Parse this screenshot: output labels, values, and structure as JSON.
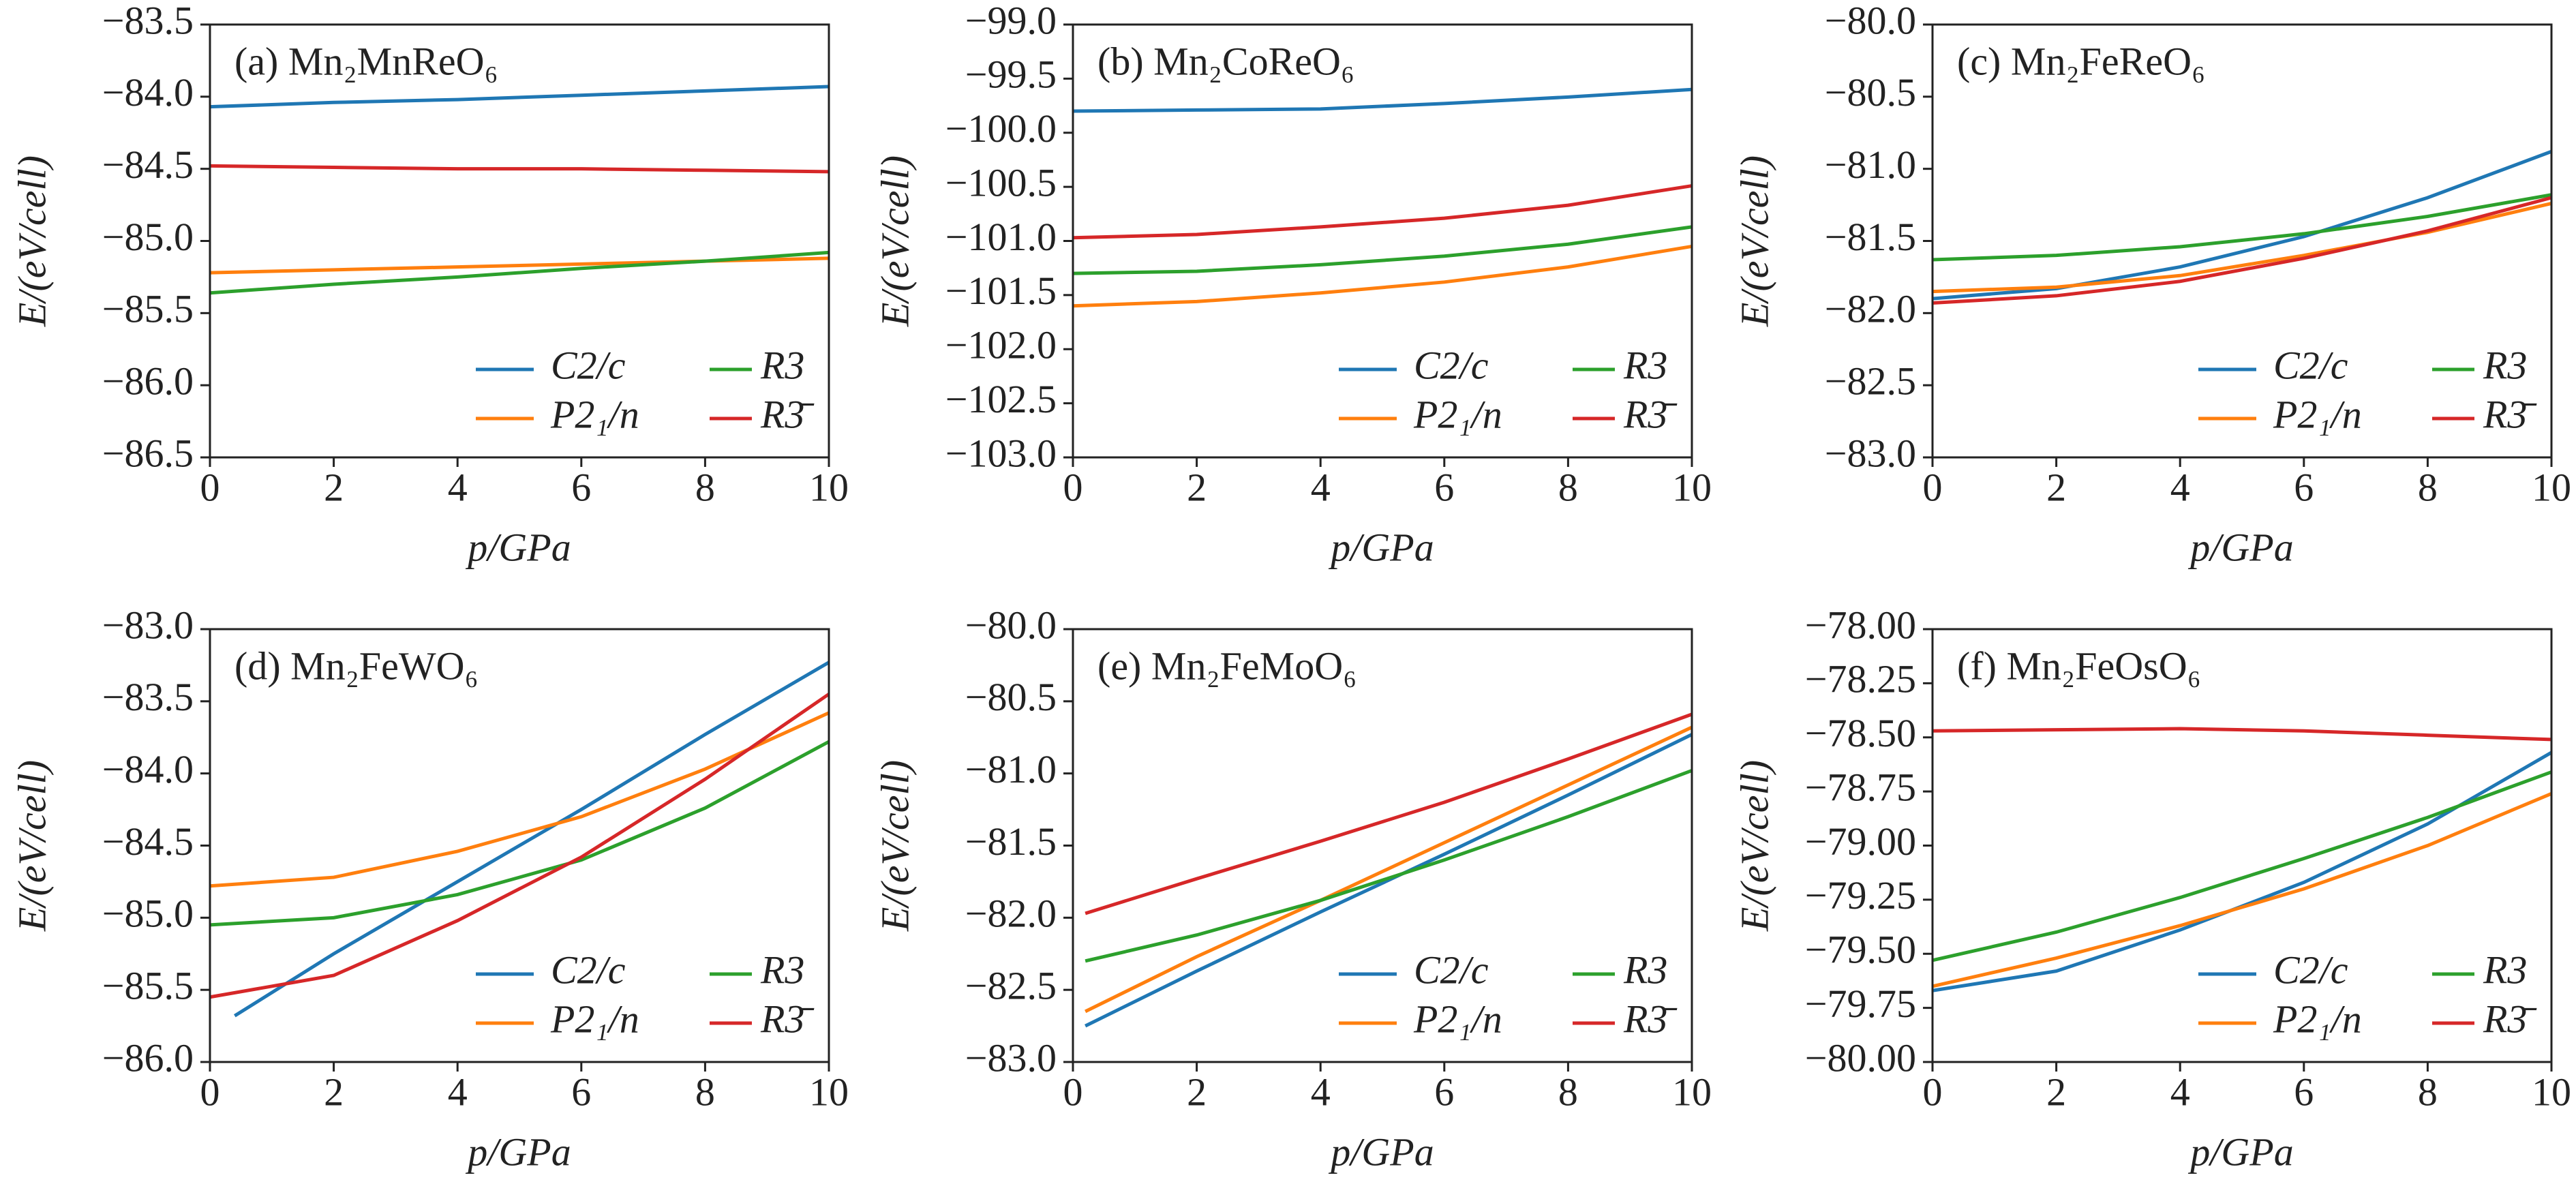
{
  "chart_data": [
    {
      "type": "line",
      "title": "(a) Mn₂MnReO₆",
      "xlabel": "p/GPa",
      "ylabel": "E/(eV/cell)",
      "x": [
        0,
        2,
        4,
        6,
        8,
        10
      ],
      "xlim": [
        0,
        10
      ],
      "xticks": [
        0,
        2,
        4,
        6,
        8,
        10
      ],
      "ylim": [
        -86.5,
        -83.5
      ],
      "yticks": [
        {
          "value": -86.5,
          "label": "−86.5"
        },
        {
          "value": -86.0,
          "label": "−86.0"
        },
        {
          "value": -85.5,
          "label": "−85.5"
        },
        {
          "value": -85.0,
          "label": "−85.0"
        },
        {
          "value": -84.5,
          "label": "−84.5"
        },
        {
          "value": -84.0,
          "label": "−84.0"
        },
        {
          "value": -83.5,
          "label": "−83.5"
        }
      ],
      "series": [
        {
          "name": "C2/c",
          "color": "#1f77b4",
          "values": [
            -84.07,
            -84.04,
            -84.02,
            -83.99,
            -83.96,
            -83.93
          ]
        },
        {
          "name": "P2₁/n",
          "color": "#ff7f0e",
          "values": [
            -85.22,
            -85.2,
            -85.18,
            -85.16,
            -85.14,
            -85.12
          ]
        },
        {
          "name": "R3",
          "color": "#2ca02c",
          "values": [
            -85.36,
            -85.3,
            -85.25,
            -85.19,
            -85.14,
            -85.08
          ]
        },
        {
          "name": "R3̄",
          "color": "#d62728",
          "values": [
            -84.48,
            -84.49,
            -84.5,
            -84.5,
            -84.51,
            -84.52
          ]
        }
      ]
    },
    {
      "type": "line",
      "title": "(b) Mn₂CoReO₆",
      "xlabel": "p/GPa",
      "ylabel": "E/(eV/cell)",
      "x": [
        0,
        2,
        4,
        6,
        8,
        10
      ],
      "xlim": [
        0,
        10
      ],
      "xticks": [
        0,
        2,
        4,
        6,
        8,
        10
      ],
      "ylim": [
        -103.0,
        -99.0
      ],
      "yticks": [
        {
          "value": -103.0,
          "label": "−103.0"
        },
        {
          "value": -102.5,
          "label": "−102.5"
        },
        {
          "value": -102.0,
          "label": "−102.0"
        },
        {
          "value": -101.5,
          "label": "−101.5"
        },
        {
          "value": -101.0,
          "label": "−101.0"
        },
        {
          "value": -100.5,
          "label": "−100.5"
        },
        {
          "value": -100.0,
          "label": "−100.0"
        },
        {
          "value": -99.5,
          "label": "−99.5"
        },
        {
          "value": -99.0,
          "label": "−99.0"
        }
      ],
      "series": [
        {
          "name": "C2/c",
          "color": "#1f77b4",
          "values": [
            -99.8,
            -99.79,
            -99.78,
            -99.73,
            -99.67,
            -99.6
          ]
        },
        {
          "name": "P2₁/n",
          "color": "#ff7f0e",
          "values": [
            -101.6,
            -101.56,
            -101.48,
            -101.38,
            -101.24,
            -101.05
          ]
        },
        {
          "name": "R3",
          "color": "#2ca02c",
          "values": [
            -101.3,
            -101.28,
            -101.22,
            -101.14,
            -101.03,
            -100.87
          ]
        },
        {
          "name": "R3̄",
          "color": "#d62728",
          "values": [
            -100.97,
            -100.94,
            -100.87,
            -100.79,
            -100.67,
            -100.49
          ]
        }
      ]
    },
    {
      "type": "line",
      "title": "(c) Mn₂FeReO₆",
      "xlabel": "p/GPa",
      "ylabel": "E/(eV/cell)",
      "x": [
        0,
        2,
        4,
        6,
        8,
        10
      ],
      "xlim": [
        0,
        10
      ],
      "xticks": [
        0,
        2,
        4,
        6,
        8,
        10
      ],
      "ylim": [
        -83.0,
        -80.0
      ],
      "yticks": [
        {
          "value": -83.0,
          "label": "−83.0"
        },
        {
          "value": -82.5,
          "label": "−82.5"
        },
        {
          "value": -82.0,
          "label": "−82.0"
        },
        {
          "value": -81.5,
          "label": "−81.5"
        },
        {
          "value": -81.0,
          "label": "−81.0"
        },
        {
          "value": -80.5,
          "label": "−80.5"
        },
        {
          "value": -80.0,
          "label": "−80.0"
        }
      ],
      "series": [
        {
          "name": "C2/c",
          "color": "#1f77b4",
          "values": [
            -81.9,
            -81.83,
            -81.68,
            -81.47,
            -81.2,
            -80.88
          ]
        },
        {
          "name": "P2₁/n",
          "color": "#ff7f0e",
          "values": [
            -81.85,
            -81.82,
            -81.74,
            -81.6,
            -81.44,
            -81.24
          ]
        },
        {
          "name": "R3",
          "color": "#2ca02c",
          "values": [
            -81.63,
            -81.6,
            -81.54,
            -81.45,
            -81.33,
            -81.18
          ]
        },
        {
          "name": "R3̄",
          "color": "#d62728",
          "values": [
            -81.93,
            -81.88,
            -81.78,
            -81.62,
            -81.43,
            -81.2
          ]
        }
      ]
    },
    {
      "type": "line",
      "title": "(d) Mn₂FeWO₆",
      "xlabel": "p/GPa",
      "ylabel": "E/(eV/cell)",
      "x": [
        0,
        2,
        4,
        6,
        8,
        10
      ],
      "xlim": [
        0,
        10
      ],
      "xticks": [
        0,
        2,
        4,
        6,
        8,
        10
      ],
      "ylim": [
        -86.0,
        -83.0
      ],
      "yticks": [
        {
          "value": -86.0,
          "label": "−86.0"
        },
        {
          "value": -85.5,
          "label": "−85.5"
        },
        {
          "value": -85.0,
          "label": "−85.0"
        },
        {
          "value": -84.5,
          "label": "−84.5"
        },
        {
          "value": -84.0,
          "label": "−84.0"
        },
        {
          "value": -83.5,
          "label": "−83.5"
        },
        {
          "value": -83.0,
          "label": "−83.0"
        }
      ],
      "series": [
        {
          "name": "C2/c",
          "color": "#1f77b4",
          "x": [
            0.4,
            2,
            4,
            6,
            8,
            10
          ],
          "values": [
            -85.68,
            -85.25,
            -84.75,
            -84.25,
            -83.73,
            -83.23
          ]
        },
        {
          "name": "P2₁/n",
          "color": "#ff7f0e",
          "values": [
            -84.78,
            -84.72,
            -84.54,
            -84.3,
            -83.97,
            -83.58
          ]
        },
        {
          "name": "R3",
          "color": "#2ca02c",
          "values": [
            -85.05,
            -85.0,
            -84.84,
            -84.6,
            -84.24,
            -83.78
          ]
        },
        {
          "name": "R3̄",
          "color": "#d62728",
          "values": [
            -85.55,
            -85.4,
            -85.02,
            -84.58,
            -84.04,
            -83.45
          ]
        }
      ]
    },
    {
      "type": "line",
      "title": "(e) Mn₂FeMoO₆",
      "xlabel": "p/GPa",
      "ylabel": "E/(eV/cell)",
      "x": [
        0,
        2,
        4,
        6,
        8,
        10
      ],
      "xlim": [
        0,
        10
      ],
      "xticks": [
        0,
        2,
        4,
        6,
        8,
        10
      ],
      "ylim": [
        -83.0,
        -80.0
      ],
      "yticks": [
        {
          "value": -83.0,
          "label": "−83.0"
        },
        {
          "value": -82.5,
          "label": "−82.5"
        },
        {
          "value": -82.0,
          "label": "−82.0"
        },
        {
          "value": -81.5,
          "label": "−81.5"
        },
        {
          "value": -81.0,
          "label": "−81.0"
        },
        {
          "value": -80.5,
          "label": "−80.5"
        },
        {
          "value": -80.0,
          "label": "−80.0"
        }
      ],
      "series": [
        {
          "name": "C2/c",
          "color": "#1f77b4",
          "x": [
            0.2,
            2,
            4,
            6,
            8,
            10
          ],
          "values": [
            -82.75,
            -82.37,
            -81.96,
            -81.56,
            -81.15,
            -80.73
          ]
        },
        {
          "name": "P2₁/n",
          "color": "#ff7f0e",
          "x": [
            0.2,
            2,
            4,
            6,
            8,
            10
          ],
          "values": [
            -82.65,
            -82.27,
            -81.88,
            -81.48,
            -81.08,
            -80.68
          ]
        },
        {
          "name": "R3",
          "color": "#2ca02c",
          "x": [
            0.2,
            2,
            4,
            6,
            8,
            10
          ],
          "values": [
            -82.3,
            -82.12,
            -81.88,
            -81.6,
            -81.3,
            -80.98
          ]
        },
        {
          "name": "R3̄",
          "color": "#d62728",
          "x": [
            0.2,
            2,
            4,
            6,
            8,
            10
          ],
          "values": [
            -81.97,
            -81.73,
            -81.47,
            -81.2,
            -80.9,
            -80.59
          ]
        }
      ]
    },
    {
      "type": "line",
      "title": "(f) Mn₂FeOsO₆",
      "xlabel": "p/GPa",
      "ylabel": "E/(eV/cell)",
      "x": [
        0,
        2,
        4,
        6,
        8,
        10
      ],
      "xlim": [
        0,
        10
      ],
      "xticks": [
        0,
        2,
        4,
        6,
        8,
        10
      ],
      "ylim": [
        -80.0,
        -78.0
      ],
      "yticks": [
        {
          "value": -80.0,
          "label": "−80.00"
        },
        {
          "value": -79.75,
          "label": "−79.75"
        },
        {
          "value": -79.5,
          "label": "−79.50"
        },
        {
          "value": -79.25,
          "label": "−79.25"
        },
        {
          "value": -79.0,
          "label": "−79.00"
        },
        {
          "value": -78.75,
          "label": "−78.75"
        },
        {
          "value": -78.5,
          "label": "−78.50"
        },
        {
          "value": -78.25,
          "label": "−78.25"
        },
        {
          "value": -78.0,
          "label": "−78.00"
        }
      ],
      "series": [
        {
          "name": "C2/c",
          "color": "#1f77b4",
          "values": [
            -79.67,
            -79.58,
            -79.39,
            -79.17,
            -78.9,
            -78.57
          ]
        },
        {
          "name": "P2₁/n",
          "color": "#ff7f0e",
          "values": [
            -79.65,
            -79.52,
            -79.37,
            -79.2,
            -79.0,
            -78.76
          ]
        },
        {
          "name": "R3",
          "color": "#2ca02c",
          "values": [
            -79.53,
            -79.4,
            -79.24,
            -79.06,
            -78.87,
            -78.66
          ]
        },
        {
          "name": "R3̄",
          "color": "#d62728",
          "values": [
            -78.47,
            -78.465,
            -78.46,
            -78.47,
            -78.49,
            -78.51
          ]
        }
      ]
    }
  ]
}
